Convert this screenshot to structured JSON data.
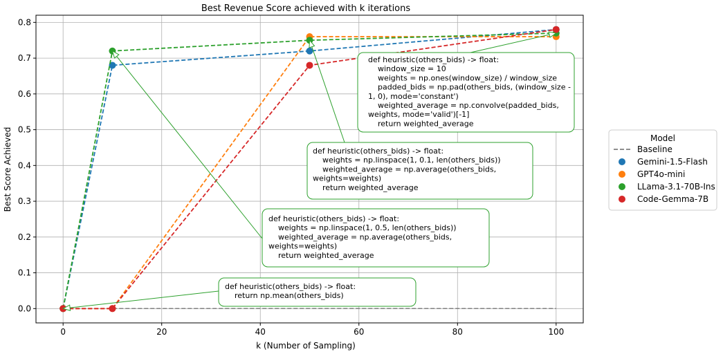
{
  "chart_data": {
    "type": "line",
    "title": "Best Revenue Score achieved with k iterations",
    "xlabel": "k (Number of Sampling)",
    "ylabel": "Best Score Achieved",
    "xlim": [
      -5.5,
      105.5
    ],
    "ylim": [
      -0.04,
      0.82
    ],
    "xticks": [
      0,
      20,
      40,
      60,
      80,
      100
    ],
    "yticks": [
      0.0,
      0.1,
      0.2,
      0.3,
      0.4,
      0.5,
      0.6,
      0.7,
      0.8
    ],
    "xtick_labels": [
      "0",
      "20",
      "40",
      "60",
      "80",
      "100"
    ],
    "ytick_labels": [
      "0.0",
      "0.1",
      "0.2",
      "0.3",
      "0.4",
      "0.5",
      "0.6",
      "0.7",
      "0.8"
    ],
    "grid": true,
    "legend": {
      "title": "Model",
      "placement": "outside-right"
    },
    "baseline": {
      "name": "Baseline",
      "value": 0.0,
      "color": "#7f7f7f"
    },
    "series": [
      {
        "name": "Gemini-1.5-Flash",
        "color": "#1f77b4",
        "x": [
          0,
          10,
          50,
          100
        ],
        "y": [
          0.0,
          0.68,
          0.72,
          0.78
        ]
      },
      {
        "name": "GPT4o-mini",
        "color": "#ff7f0e",
        "x": [
          0,
          10,
          50,
          100
        ],
        "y": [
          0.0,
          0.0,
          0.76,
          0.76
        ]
      },
      {
        "name": "LLama-3.1-70B-Ins",
        "color": "#2ca02c",
        "x": [
          0,
          10,
          50,
          100
        ],
        "y": [
          0.0,
          0.72,
          0.75,
          0.77
        ]
      },
      {
        "name": "Code-Gemma-7B",
        "color": "#d62728",
        "x": [
          0,
          10,
          50,
          100
        ],
        "y": [
          0.0,
          0.0,
          0.68,
          0.78
        ]
      }
    ],
    "annotations": [
      {
        "target_x": 0,
        "target_y": 0.0,
        "lines": [
          "def heuristic(others_bids) -> float:",
          "    return np.mean(others_bids)"
        ]
      },
      {
        "target_x": 10,
        "target_y": 0.72,
        "lines": [
          "def heuristic(others_bids) -> float:",
          "    weights = np.linspace(1, 0.5, len(others_bids))",
          "    weighted_average = np.average(others_bids,",
          "weights=weights)",
          "    return weighted_average"
        ]
      },
      {
        "target_x": 50,
        "target_y": 0.75,
        "lines": [
          "def heuristic(others_bids) -> float:",
          "    weights = np.linspace(1, 0.1, len(others_bids))",
          "    weighted_average = np.average(others_bids,",
          "weights=weights)",
          "    return weighted_average"
        ]
      },
      {
        "target_x": 100,
        "target_y": 0.77,
        "lines": [
          "def heuristic(others_bids) -> float:",
          "    window_size = 10",
          "    weights = np.ones(window_size) / window_size",
          "    padded_bids = np.pad(others_bids, (window_size -",
          "1, 0), mode='constant')",
          "    weighted_average = np.convolve(padded_bids,",
          "weights, mode='valid')[-1]",
          "    return weighted_average"
        ]
      }
    ]
  }
}
